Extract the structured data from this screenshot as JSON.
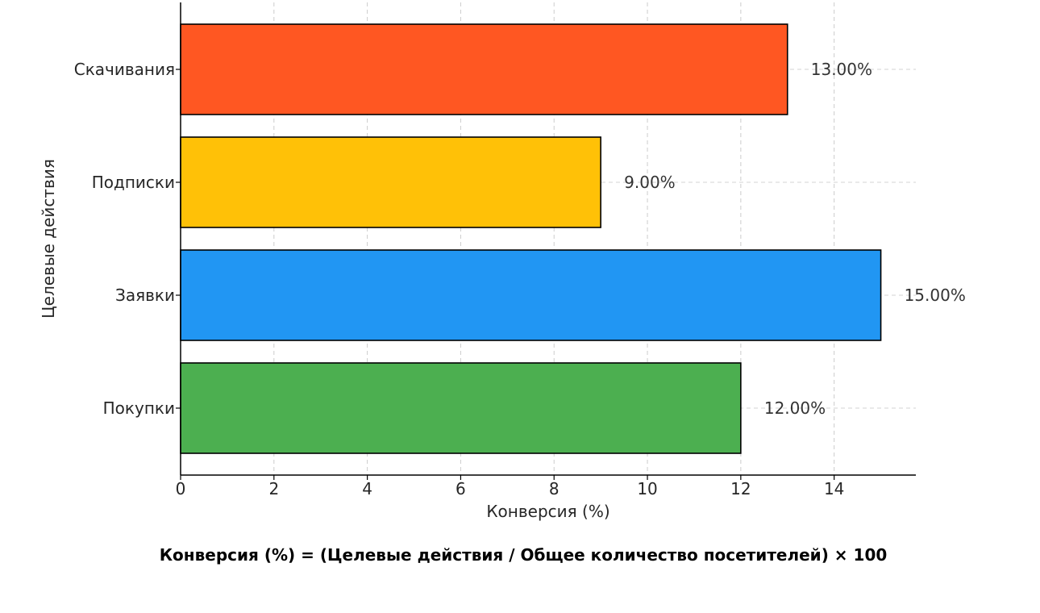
{
  "chart_data": {
    "type": "bar",
    "orientation": "horizontal",
    "categories": [
      "Скачивания",
      "Подписки",
      "Заявки",
      "Покупки"
    ],
    "values": [
      13,
      9,
      15,
      12
    ],
    "data_labels": [
      "13.00%",
      "9.00%",
      "15.00%",
      "12.00%"
    ],
    "colors": [
      "#FF5722",
      "#FFC107",
      "#2196F3",
      "#4CAF50"
    ],
    "xlabel": "Конверсия (%)",
    "ylabel": "Целевые действия",
    "xlim": [
      0,
      15.75
    ],
    "xticks": [
      0,
      2,
      4,
      6,
      8,
      10,
      12,
      14
    ],
    "grid": true
  },
  "footer": {
    "formula": "Конверсия (%) = (Целевые действия / Общее количество посетителей) × 100"
  }
}
